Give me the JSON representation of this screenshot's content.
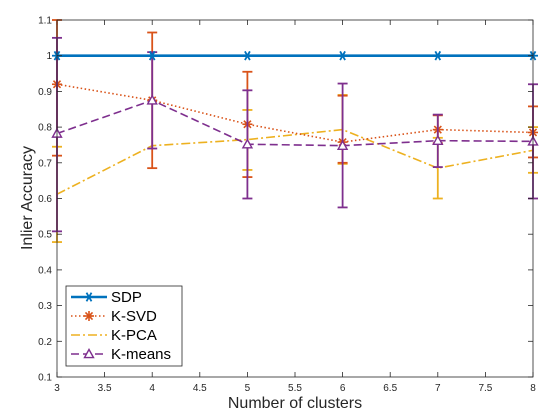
{
  "chart_data": {
    "type": "line",
    "title": "",
    "xlabel": "Number of clusters",
    "ylabel": "Inlier Accuracy",
    "xlim": [
      3,
      8
    ],
    "ylim": [
      0.1,
      1.1
    ],
    "xticks": [
      3,
      3.5,
      4,
      4.5,
      5,
      5.5,
      6,
      6.5,
      7,
      7.5,
      8
    ],
    "xtick_labels": [
      "3",
      "3.5",
      "4",
      "4.5",
      "5",
      "5.5",
      "6",
      "6.5",
      "7",
      "7.5",
      "8"
    ],
    "yticks": [
      0.1,
      0.2,
      0.3,
      0.4,
      0.5,
      0.6,
      0.7,
      0.8,
      0.9,
      1,
      1.1
    ],
    "ytick_labels": [
      "0.1",
      "0.2",
      "0.3",
      "0.4",
      "0.5",
      "0.6",
      "0.7",
      "0.8",
      "0.9",
      "1",
      "1.1"
    ],
    "grid": false,
    "legend_position": "bottom-left",
    "x": [
      3,
      4,
      5,
      6,
      7,
      8
    ],
    "series": [
      {
        "name": "SDP",
        "color": "#0072bd",
        "linestyle": "solid",
        "marker": "asterisk",
        "values": [
          1,
          1,
          1,
          1,
          1,
          1
        ],
        "err_low": [
          0,
          0,
          0,
          0,
          0,
          0
        ],
        "err_high": [
          0,
          0,
          0,
          0,
          0,
          0
        ]
      },
      {
        "name": "K-SVD",
        "color": "#d95319",
        "linestyle": "dotted",
        "marker": "star",
        "values": [
          0.92,
          0.875,
          0.808,
          0.758,
          0.793,
          0.785
        ],
        "err_low": [
          0.72,
          0.685,
          0.66,
          0.7,
          0.755,
          0.715
        ],
        "err_high": [
          1.1,
          1.065,
          0.955,
          0.888,
          0.833,
          0.858
        ]
      },
      {
        "name": "K-PCA",
        "color": "#edb120",
        "linestyle": "dashdot",
        "marker": "none",
        "values": [
          0.612,
          0.748,
          0.765,
          0.793,
          0.685,
          0.735
        ],
        "err_low": [
          0.478,
          0.748,
          0.68,
          0.697,
          0.6,
          0.672
        ],
        "err_high": [
          0.745,
          0.748,
          0.848,
          0.89,
          0.77,
          0.8
        ]
      },
      {
        "name": "K-means",
        "color": "#7e2f8e",
        "linestyle": "dashed",
        "marker": "triangle",
        "values": [
          0.782,
          0.875,
          0.752,
          0.748,
          0.762,
          0.76
        ],
        "err_low": [
          0.508,
          0.74,
          0.6,
          0.575,
          0.688,
          0.6
        ],
        "err_high": [
          1.05,
          1.01,
          0.903,
          0.922,
          0.835,
          0.92
        ]
      }
    ]
  }
}
